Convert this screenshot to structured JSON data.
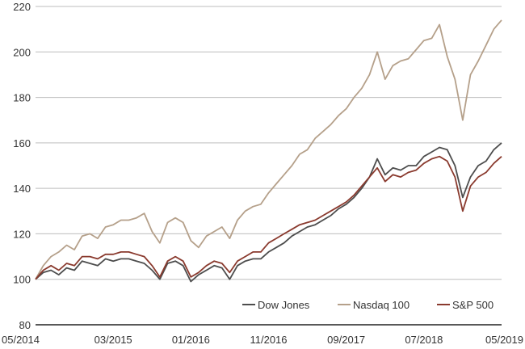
{
  "chart_data": {
    "type": "line",
    "title": "",
    "xlabel": "",
    "ylabel": "",
    "ylim": [
      80,
      220
    ],
    "yticks": [
      80,
      100,
      120,
      140,
      160,
      180,
      200,
      220
    ],
    "x_tick_labels": [
      "05/2014",
      "03/2015",
      "01/2016",
      "11/2016",
      "09/2017",
      "07/2018",
      "05/2019"
    ],
    "x_months": [
      "2014-05",
      "2014-06",
      "2014-07",
      "2014-08",
      "2014-09",
      "2014-10",
      "2014-11",
      "2014-12",
      "2015-01",
      "2015-02",
      "2015-03",
      "2015-04",
      "2015-05",
      "2015-06",
      "2015-07",
      "2015-08",
      "2015-09",
      "2015-10",
      "2015-11",
      "2015-12",
      "2016-01",
      "2016-02",
      "2016-03",
      "2016-04",
      "2016-05",
      "2016-06",
      "2016-07",
      "2016-08",
      "2016-09",
      "2016-10",
      "2016-11",
      "2016-12",
      "2017-01",
      "2017-02",
      "2017-03",
      "2017-04",
      "2017-05",
      "2017-06",
      "2017-07",
      "2017-08",
      "2017-09",
      "2017-10",
      "2017-11",
      "2017-12",
      "2018-01",
      "2018-02",
      "2018-03",
      "2018-04",
      "2018-05",
      "2018-06",
      "2018-07",
      "2018-08",
      "2018-09",
      "2018-10",
      "2018-11",
      "2018-12",
      "2019-01",
      "2019-02",
      "2019-03",
      "2019-04",
      "2019-05"
    ],
    "legend_position": "bottom-right",
    "grid": true,
    "series": [
      {
        "name": "Dow Jones",
        "color": "#4d4d4d",
        "values": [
          100,
          103,
          104,
          102,
          105,
          104,
          108,
          107,
          106,
          109,
          108,
          109,
          109,
          108,
          107,
          104,
          100,
          107,
          108,
          106,
          99,
          102,
          104,
          106,
          105,
          100,
          106,
          108,
          109,
          109,
          112,
          114,
          116,
          119,
          121,
          123,
          124,
          126,
          128,
          131,
          133,
          136,
          140,
          145,
          153,
          146,
          149,
          148,
          150,
          150,
          154,
          156,
          158,
          157,
          150,
          136,
          145,
          150,
          152,
          157,
          160
        ]
      },
      {
        "name": "Nasdaq 100",
        "color": "#b5a08a",
        "values": [
          100,
          106,
          110,
          112,
          115,
          113,
          119,
          120,
          118,
          123,
          124,
          126,
          126,
          127,
          129,
          121,
          116,
          125,
          127,
          125,
          117,
          114,
          119,
          121,
          123,
          118,
          126,
          130,
          132,
          133,
          138,
          142,
          146,
          150,
          155,
          157,
          162,
          165,
          168,
          172,
          175,
          180,
          184,
          190,
          200,
          188,
          194,
          196,
          197,
          201,
          205,
          206,
          212,
          198,
          188,
          170,
          190,
          196,
          203,
          210,
          214
        ]
      },
      {
        "name": "S&P 500",
        "color": "#8a3a2e",
        "values": [
          100,
          104,
          106,
          104,
          107,
          106,
          110,
          110,
          109,
          111,
          111,
          112,
          112,
          111,
          110,
          106,
          101,
          108,
          110,
          108,
          101,
          103,
          106,
          108,
          107,
          103,
          108,
          110,
          112,
          112,
          116,
          118,
          120,
          122,
          124,
          125,
          126,
          128,
          130,
          132,
          134,
          137,
          141,
          145,
          149,
          143,
          146,
          145,
          147,
          148,
          151,
          153,
          154,
          152,
          145,
          130,
          141,
          145,
          147,
          151,
          154
        ]
      }
    ]
  }
}
